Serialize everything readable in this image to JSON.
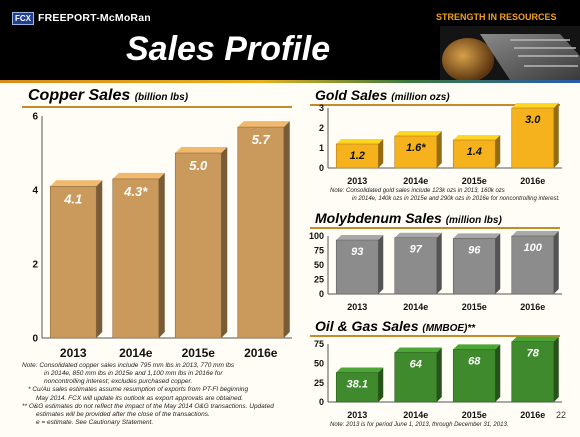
{
  "header": {
    "company": "FREEPORT-McMoRan",
    "logo_text": "FCX",
    "tagline": "STRENGTH IN RESOURCES",
    "title": "Sales Profile"
  },
  "page_number": "22",
  "copper": {
    "title": "Copper Sales",
    "unit": "(billion lbs)",
    "notes": [
      "Note:  Consolidated copper sales include 795 mm lbs in 2013, 770 mm lbs",
      "in 2014e, 850 mm lbs in 2015e and 1,100 mm lbs in 2016e for",
      "noncontrolling interest; excludes purchased copper.",
      "* Cu/Au sales estimates assume resumption of exports from PT-FI beginning",
      "May 2014. FCX will update its outlook as export approvals are obtained.",
      "** O&G estimates do not reflect the impact of the May 2014 O&G transactions. Updated",
      "estimates will be provided after the close of the transactions.",
      "e = estimate. See Cautionary Statement."
    ]
  },
  "gold": {
    "title": "Gold Sales",
    "unit": "(million ozs)",
    "notes": [
      "Note:  Consolidated gold sales include 123k ozs in 2013, 160k ozs",
      "in 2014e, 140k ozs in 2015e and 290k ozs in 2016e for noncontrolling interest."
    ]
  },
  "moly": {
    "title": "Molybdenum Sales",
    "unit": "(million lbs)"
  },
  "oilgas": {
    "title": "Oil & Gas Sales",
    "unit": "(MMBOE)**",
    "notes": [
      "Note: 2013 is for period June 1, 2013, through December 31, 2013."
    ]
  },
  "colors": {
    "copper": "#c99a5b",
    "gold": "#f5b21c",
    "moly": "#8c8c8c",
    "oilgas": "#3f8a2c"
  },
  "chart_data": [
    {
      "id": "copper",
      "type": "bar",
      "title": "Copper Sales",
      "ylabel": "(billion lbs)",
      "categories": [
        "2013",
        "2014e",
        "2015e",
        "2016e"
      ],
      "values": [
        4.1,
        4.3,
        5.0,
        5.7
      ],
      "labels": [
        "4.1",
        "4.3*",
        "5.0",
        "5.7"
      ],
      "ylim": [
        0,
        6
      ],
      "yticks": [
        "0",
        "2",
        "4",
        "6"
      ],
      "color": "#c99a5b"
    },
    {
      "id": "gold",
      "type": "bar",
      "title": "Gold Sales",
      "ylabel": "(million ozs)",
      "categories": [
        "2013",
        "2014e",
        "2015e",
        "2016e"
      ],
      "values": [
        1.2,
        1.6,
        1.4,
        3.0
      ],
      "labels": [
        "1.2",
        "1.6*",
        "1.4",
        "3.0"
      ],
      "ylim": [
        0,
        3
      ],
      "yticks": [
        "0",
        "1",
        "2",
        "3"
      ],
      "color": "#f5b21c"
    },
    {
      "id": "moly",
      "type": "bar",
      "title": "Molybdenum Sales",
      "ylabel": "(million lbs)",
      "categories": [
        "2013",
        "2014e",
        "2015e",
        "2016e"
      ],
      "values": [
        93,
        97,
        96,
        100
      ],
      "labels": [
        "93",
        "97",
        "96",
        "100"
      ],
      "ylim": [
        0,
        100
      ],
      "yticks": [
        "0",
        "25",
        "50",
        "75",
        "100"
      ],
      "color": "#8c8c8c"
    },
    {
      "id": "oilgas",
      "type": "bar",
      "title": "Oil & Gas Sales",
      "ylabel": "(MMBOE)**",
      "categories": [
        "2013",
        "2014e",
        "2015e",
        "2016e"
      ],
      "values": [
        38.1,
        64,
        68,
        78
      ],
      "labels": [
        "38.1",
        "64",
        "68",
        "78"
      ],
      "ylim": [
        0,
        75
      ],
      "yticks": [
        "0",
        "25",
        "50",
        "75"
      ],
      "color": "#3f8a2c"
    }
  ]
}
